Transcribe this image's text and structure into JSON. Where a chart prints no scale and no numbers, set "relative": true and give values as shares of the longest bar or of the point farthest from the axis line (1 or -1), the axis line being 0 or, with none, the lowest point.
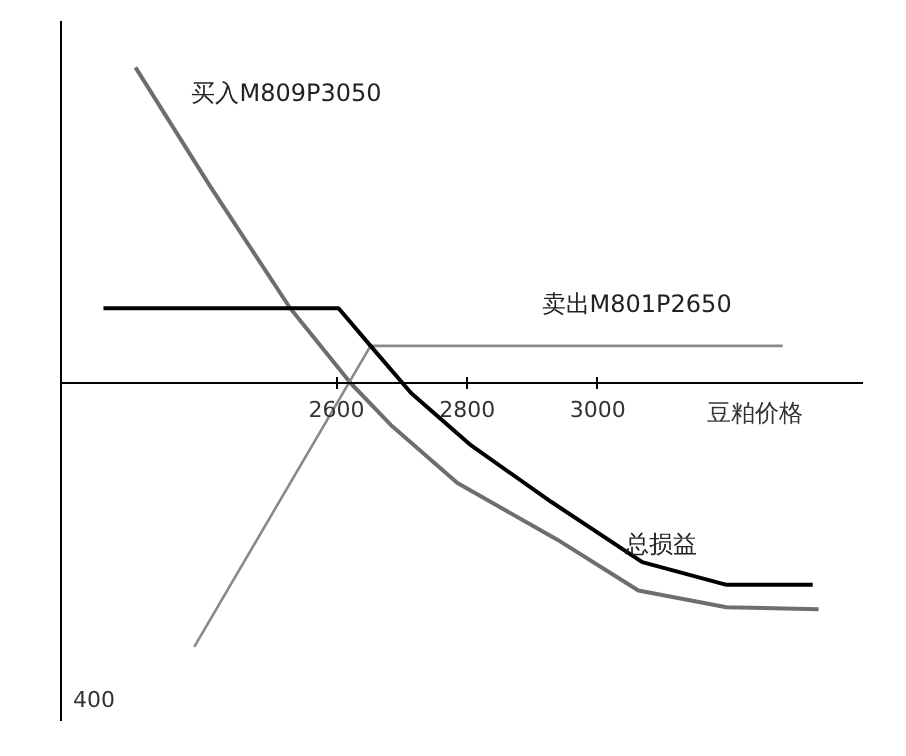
{
  "chart_data": {
    "type": "line",
    "relative": true,
    "xlabel": "豆粕价格",
    "xlim": [
      2178,
      3406
    ],
    "xticks": [
      2600,
      2800,
      3000
    ],
    "tick_labels": "x",
    "annotations": [
      "400"
    ],
    "series": [
      {
        "name": "买入M809P3050",
        "color": "#6e6e6e",
        "x": [
          2292,
          2406,
          2529,
          2622,
          2683,
          2785,
          2938,
          3062,
          3197,
          3338
        ],
        "values": [
          1.0,
          0.625,
          0.238,
          0,
          -0.131,
          -0.315,
          -0.494,
          -0.655,
          -0.708,
          -0.714
        ]
      },
      {
        "name": "卖出M801P2650",
        "color": "#8a8a8a",
        "x": [
          2382,
          2652,
          3283
        ],
        "values": [
          -0.833,
          0.119,
          0.119
        ]
      },
      {
        "name": "总损益",
        "color": "#000000",
        "x": [
          2243,
          2603,
          2652,
          2714,
          2806,
          2929,
          3068,
          3197,
          3329
        ],
        "values": [
          0.238,
          0.238,
          0.119,
          -0.03,
          -0.196,
          -0.375,
          -0.565,
          -0.637,
          -0.637
        ]
      }
    ]
  }
}
